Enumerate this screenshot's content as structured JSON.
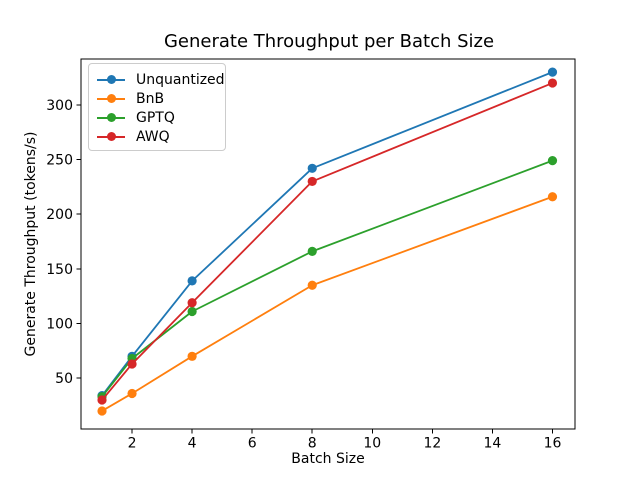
{
  "chart_data": {
    "type": "line",
    "title": "Generate Throughput per Batch Size",
    "xlabel": "Batch Size",
    "ylabel": "Generate Throughput (tokens/s)",
    "x": [
      1,
      2,
      4,
      8,
      16
    ],
    "series": [
      {
        "name": "Unquantized",
        "color": "#1f77b4",
        "values": [
          34,
          70,
          139,
          242,
          330
        ]
      },
      {
        "name": "BnB",
        "color": "#ff7f0e",
        "values": [
          20,
          36,
          70,
          135,
          216
        ]
      },
      {
        "name": "GPTQ",
        "color": "#2ca02c",
        "values": [
          33,
          68,
          111,
          166,
          249
        ]
      },
      {
        "name": "AWQ",
        "color": "#d62728",
        "values": [
          30,
          63,
          119,
          230,
          320
        ]
      }
    ],
    "xticks": [
      2,
      4,
      6,
      8,
      10,
      12,
      14,
      16
    ],
    "yticks": [
      50,
      100,
      150,
      200,
      250,
      300
    ],
    "xlim": [
      0.3,
      16.75
    ],
    "ylim": [
      3.5,
      342
    ],
    "grid": false,
    "marker": "circle",
    "legend": {
      "position": "upper-left",
      "entries": [
        "Unquantized",
        "BnB",
        "GPTQ",
        "AWQ"
      ]
    }
  }
}
